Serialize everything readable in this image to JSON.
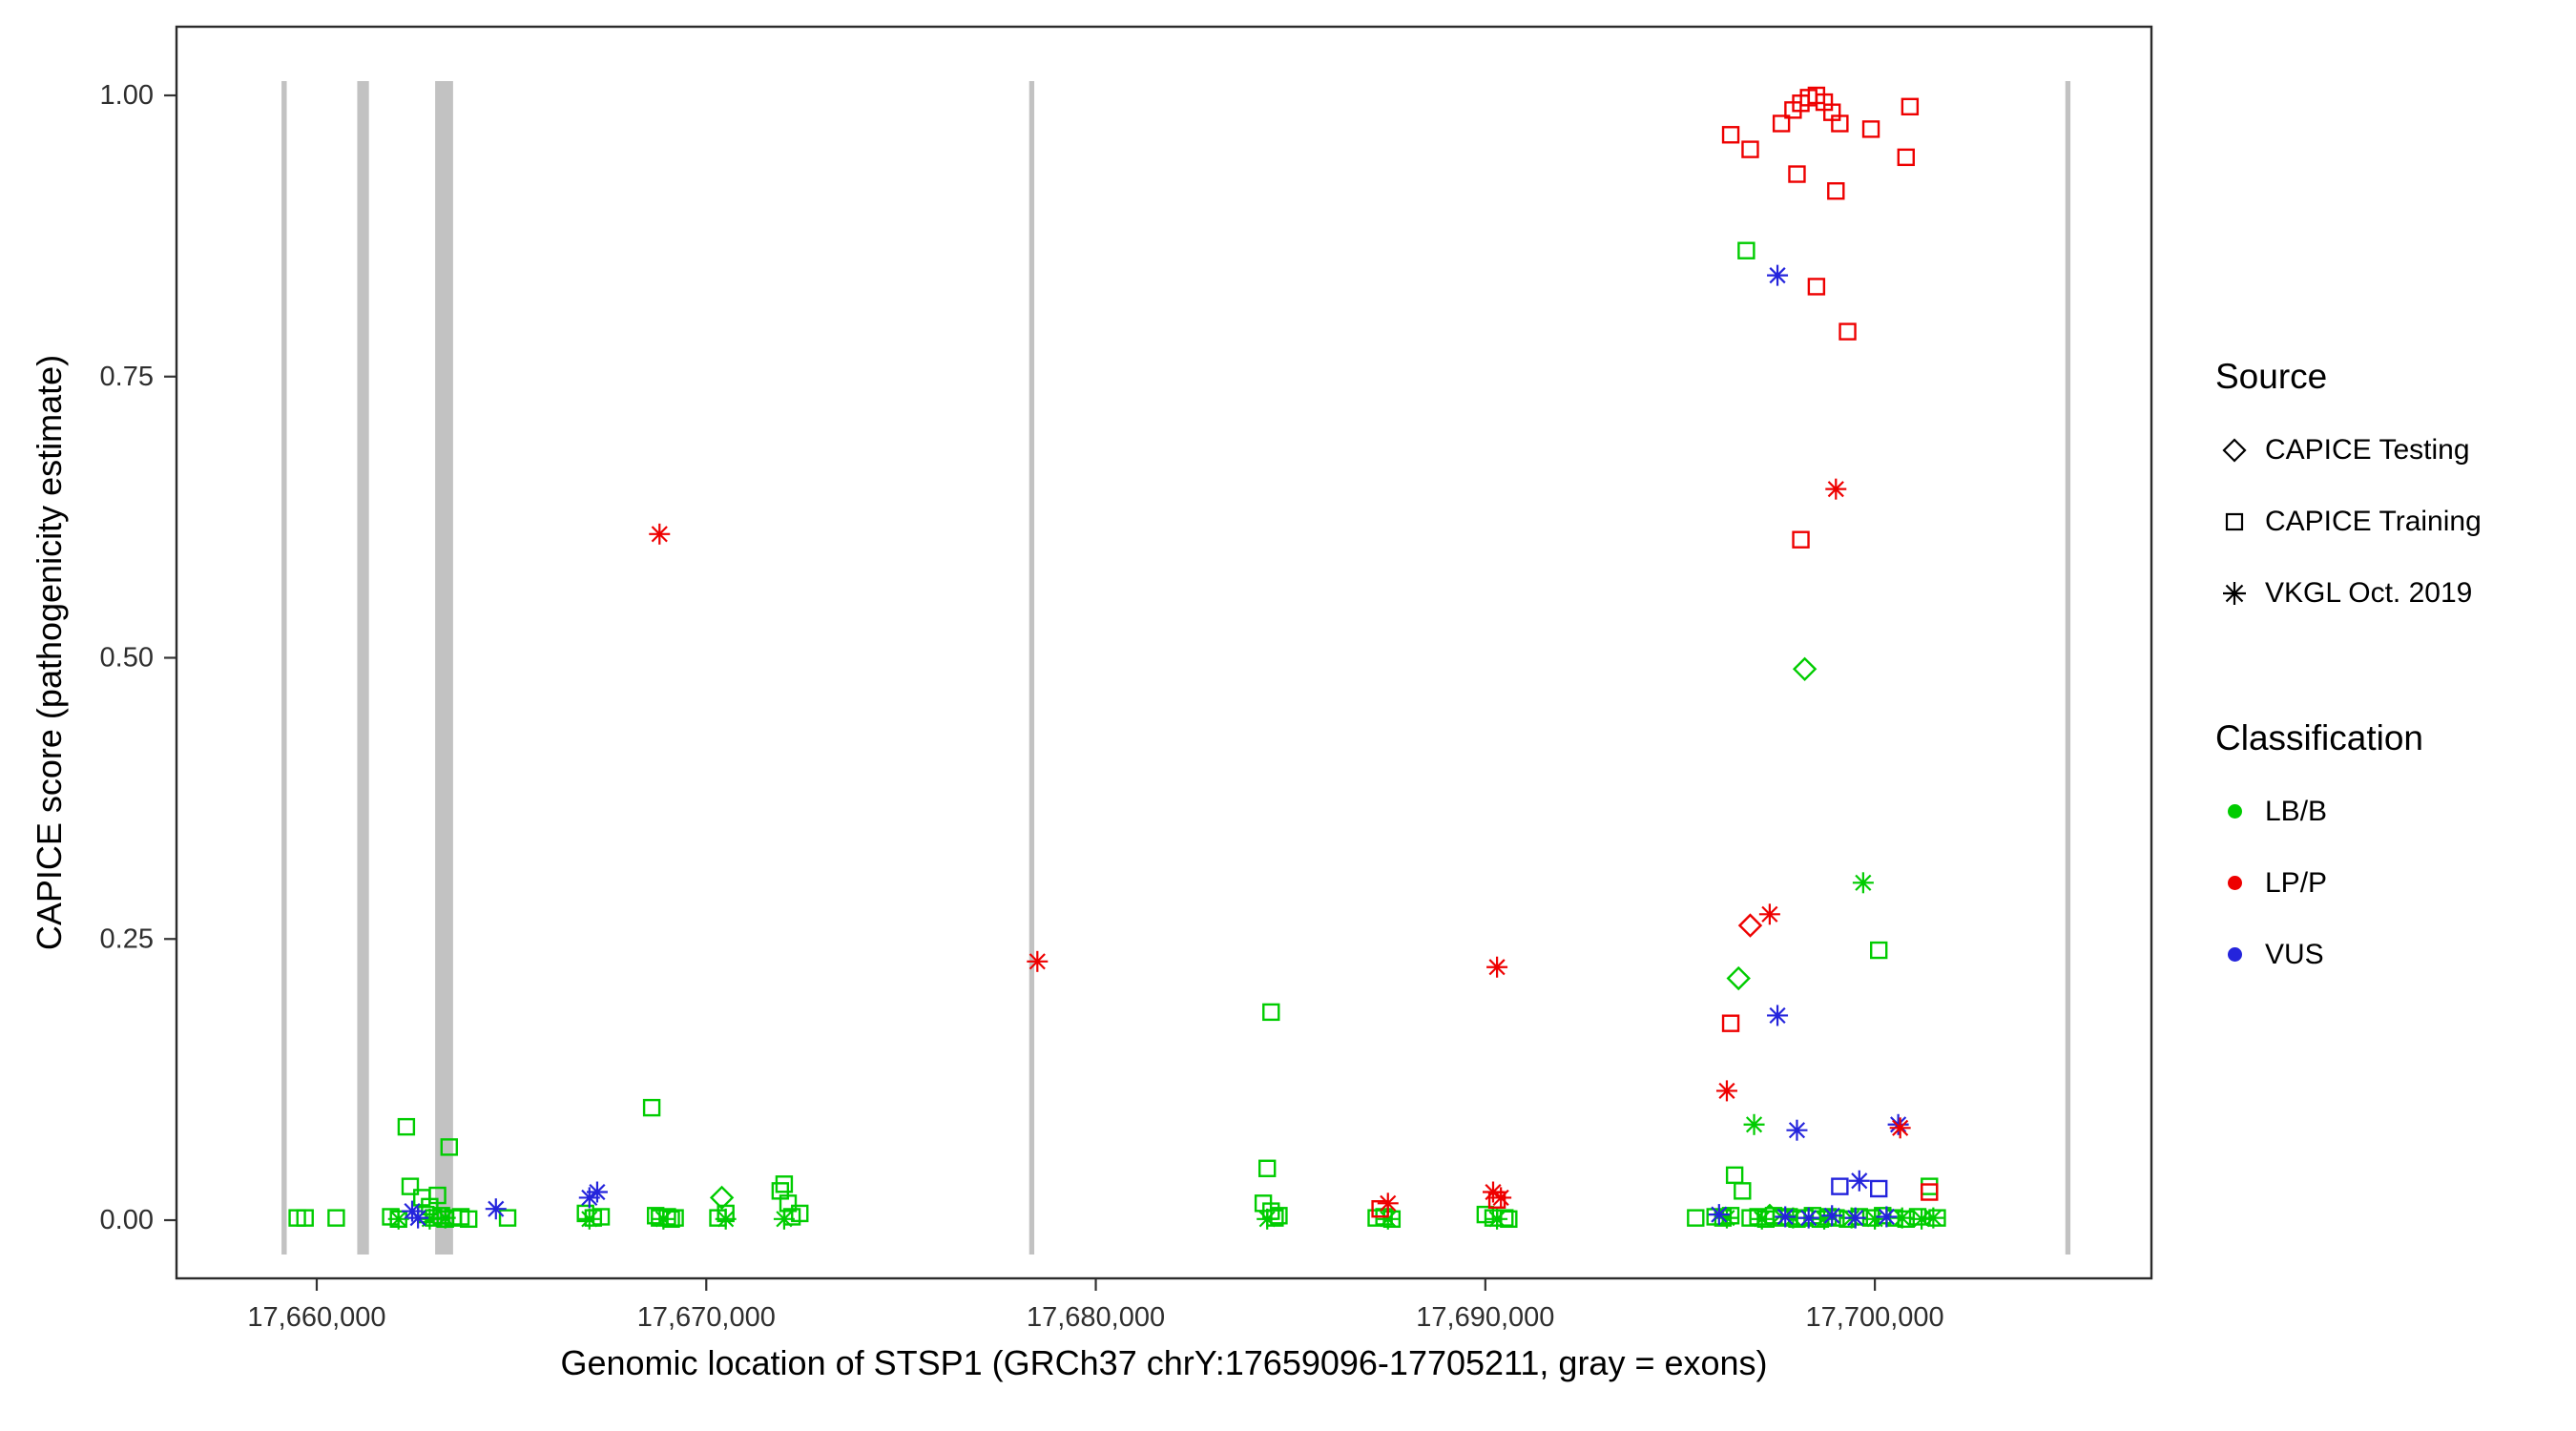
{
  "chart_data": {
    "type": "scatter",
    "title": "",
    "xlabel": "Genomic location of STSP1 (GRCh37 chrY:17659096-17705211, gray = exons)",
    "ylabel": "CAPICE score (pathogenicity estimate)",
    "xlim": [
      17656400,
      17707100
    ],
    "ylim": [
      0,
      1
    ],
    "grid": "off",
    "legend_position": "right",
    "x_ticks": [
      {
        "value": 17660000,
        "label": "17,660,000"
      },
      {
        "value": 17670000,
        "label": "17,670,000"
      },
      {
        "value": 17680000,
        "label": "17,680,000"
      },
      {
        "value": 17690000,
        "label": "17,690,000"
      },
      {
        "value": 17700000,
        "label": "17,700,000"
      }
    ],
    "y_ticks": [
      {
        "value": 0.0,
        "label": "0.00"
      },
      {
        "value": 0.25,
        "label": "0.25"
      },
      {
        "value": 0.5,
        "label": "0.50"
      },
      {
        "value": 0.75,
        "label": "0.75"
      },
      {
        "value": 1.0,
        "label": "1.00"
      }
    ],
    "exon_color": "#c2c2c2",
    "exons": [
      [
        17659096,
        17659230
      ],
      [
        17661040,
        17661340
      ],
      [
        17663040,
        17663500
      ],
      [
        17678290,
        17678420
      ],
      [
        17704890,
        17705020
      ]
    ],
    "colors": {
      "LB/B": "#00cc00",
      "LP/P": "#ee0000",
      "VUS": "#2424dc"
    },
    "shapes": {
      "CAPICE Testing": "diamond",
      "CAPICE Training": "square",
      "VKGL Oct. 2019": "asterisk"
    },
    "series": [
      {
        "source": "CAPICE Training",
        "classification": "LB/B",
        "points": [
          [
            17659500,
            0.002
          ],
          [
            17659700,
            0.002
          ],
          [
            17660500,
            0.002
          ],
          [
            17661900,
            0.003
          ],
          [
            17662100,
            0.001
          ],
          [
            17662300,
            0.083
          ],
          [
            17662400,
            0.03
          ],
          [
            17662700,
            0.02
          ],
          [
            17662800,
            0.005
          ],
          [
            17662900,
            0.012
          ],
          [
            17663000,
            0.002
          ],
          [
            17663100,
            0.022
          ],
          [
            17663200,
            0.004
          ],
          [
            17663300,
            0.001
          ],
          [
            17663400,
            0.065
          ],
          [
            17663500,
            0.002
          ],
          [
            17663700,
            0.003
          ],
          [
            17663900,
            0.001
          ],
          [
            17664900,
            0.002
          ],
          [
            17666900,
            0.006
          ],
          [
            17667100,
            0.002
          ],
          [
            17667300,
            0.003
          ],
          [
            17668600,
            0.1
          ],
          [
            17668700,
            0.004
          ],
          [
            17668800,
            0.002
          ],
          [
            17669000,
            0.003
          ],
          [
            17669100,
            0.001
          ],
          [
            17669200,
            0.002
          ],
          [
            17670300,
            0.002
          ],
          [
            17670500,
            0.006
          ],
          [
            17671900,
            0.026
          ],
          [
            17672000,
            0.032
          ],
          [
            17672100,
            0.015
          ],
          [
            17672200,
            0.003
          ],
          [
            17672400,
            0.006
          ],
          [
            17684500,
            0.185
          ],
          [
            17684400,
            0.046
          ],
          [
            17684300,
            0.015
          ],
          [
            17684500,
            0.008
          ],
          [
            17684600,
            0.002
          ],
          [
            17684700,
            0.004
          ],
          [
            17687200,
            0.002
          ],
          [
            17687400,
            0.003
          ],
          [
            17687600,
            0.001
          ],
          [
            17690000,
            0.005
          ],
          [
            17690200,
            0.002
          ],
          [
            17690500,
            0.002
          ],
          [
            17690600,
            0.001
          ],
          [
            17695400,
            0.002
          ],
          [
            17696700,
            0.862
          ],
          [
            17700100,
            0.24
          ],
          [
            17696400,
            0.04
          ],
          [
            17696600,
            0.026
          ],
          [
            17695900,
            0.003
          ],
          [
            17696100,
            0.002
          ],
          [
            17696300,
            0.004
          ],
          [
            17696800,
            0.002
          ],
          [
            17697000,
            0.003
          ],
          [
            17697200,
            0.001
          ],
          [
            17697400,
            0.004
          ],
          [
            17697600,
            0.002
          ],
          [
            17697800,
            0.003
          ],
          [
            17698000,
            0.001
          ],
          [
            17698200,
            0.002
          ],
          [
            17698400,
            0.004
          ],
          [
            17698600,
            0.001
          ],
          [
            17698800,
            0.003
          ],
          [
            17699000,
            0.002
          ],
          [
            17699300,
            0.001
          ],
          [
            17699600,
            0.003
          ],
          [
            17699900,
            0.002
          ],
          [
            17700200,
            0.004
          ],
          [
            17700500,
            0.002
          ],
          [
            17700800,
            0.001
          ],
          [
            17701100,
            0.003
          ],
          [
            17701400,
            0.03
          ],
          [
            17701600,
            0.002
          ]
        ]
      },
      {
        "source": "CAPICE Testing",
        "classification": "LB/B",
        "points": [
          [
            17670400,
            0.02
          ],
          [
            17696500,
            0.215
          ],
          [
            17698200,
            0.49
          ],
          [
            17697300,
            0.004
          ]
        ]
      },
      {
        "source": "VKGL Oct. 2019",
        "classification": "LB/B",
        "points": [
          [
            17662100,
            0.001
          ],
          [
            17662900,
            0.001
          ],
          [
            17663300,
            0.002
          ],
          [
            17667000,
            0.001
          ],
          [
            17668900,
            0.001
          ],
          [
            17670500,
            0.001
          ],
          [
            17672000,
            0.001
          ],
          [
            17684400,
            0.001
          ],
          [
            17687500,
            0.001
          ],
          [
            17690300,
            0.001
          ],
          [
            17696200,
            0.002
          ],
          [
            17696900,
            0.085
          ],
          [
            17697100,
            0.001
          ],
          [
            17697900,
            0.002
          ],
          [
            17698700,
            0.001
          ],
          [
            17699400,
            0.002
          ],
          [
            17699700,
            0.3
          ],
          [
            17700000,
            0.001
          ],
          [
            17700700,
            0.002
          ],
          [
            17701200,
            0.001
          ],
          [
            17701500,
            0.002
          ]
        ]
      },
      {
        "source": "CAPICE Training",
        "classification": "VUS",
        "points": [
          [
            17699100,
            0.03
          ],
          [
            17700100,
            0.028
          ]
        ]
      },
      {
        "source": "VKGL Oct. 2019",
        "classification": "VUS",
        "points": [
          [
            17662450,
            0.008
          ],
          [
            17662600,
            0.002
          ],
          [
            17664600,
            0.01
          ],
          [
            17667000,
            0.02
          ],
          [
            17667200,
            0.025
          ],
          [
            17697500,
            0.84
          ],
          [
            17697500,
            0.182
          ],
          [
            17698000,
            0.08
          ],
          [
            17700600,
            0.085
          ],
          [
            17696000,
            0.005
          ],
          [
            17697700,
            0.003
          ],
          [
            17698300,
            0.002
          ],
          [
            17698900,
            0.004
          ],
          [
            17699500,
            0.002
          ],
          [
            17699600,
            0.035
          ],
          [
            17700300,
            0.003
          ]
        ]
      },
      {
        "source": "CAPICE Training",
        "classification": "LP/P",
        "points": [
          [
            17696300,
            0.965
          ],
          [
            17696800,
            0.952
          ],
          [
            17697600,
            0.975
          ],
          [
            17697900,
            0.987
          ],
          [
            17698100,
            0.993
          ],
          [
            17698300,
            0.998
          ],
          [
            17698500,
            1.0
          ],
          [
            17698700,
            0.994
          ],
          [
            17698900,
            0.985
          ],
          [
            17699100,
            0.975
          ],
          [
            17698000,
            0.93
          ],
          [
            17699900,
            0.97
          ],
          [
            17699000,
            0.915
          ],
          [
            17700900,
            0.99
          ],
          [
            17700800,
            0.945
          ],
          [
            17698500,
            0.83
          ],
          [
            17699300,
            0.79
          ],
          [
            17698100,
            0.605
          ],
          [
            17696300,
            0.175
          ],
          [
            17687300,
            0.01
          ],
          [
            17690300,
            0.018
          ],
          [
            17701400,
            0.025
          ]
        ]
      },
      {
        "source": "CAPICE Testing",
        "classification": "LP/P",
        "points": [
          [
            17696800,
            0.262
          ]
        ]
      },
      {
        "source": "VKGL Oct. 2019",
        "classification": "LP/P",
        "points": [
          [
            17668800,
            0.61
          ],
          [
            17678500,
            0.23
          ],
          [
            17690300,
            0.225
          ],
          [
            17699000,
            0.65
          ],
          [
            17697300,
            0.272
          ],
          [
            17696200,
            0.115
          ],
          [
            17687500,
            0.015
          ],
          [
            17690200,
            0.025
          ],
          [
            17690400,
            0.02
          ],
          [
            17700650,
            0.082
          ]
        ]
      }
    ]
  },
  "legend": {
    "source": {
      "title": "Source",
      "items": [
        {
          "label": "CAPICE Testing",
          "shape": "diamond"
        },
        {
          "label": "CAPICE Training",
          "shape": "square"
        },
        {
          "label": "VKGL Oct. 2019",
          "shape": "asterisk"
        }
      ]
    },
    "classification": {
      "title": "Classification",
      "items": [
        {
          "label": "LB/B",
          "color": "#00cc00"
        },
        {
          "label": "LP/P",
          "color": "#ee0000"
        },
        {
          "label": "VUS",
          "color": "#2424dc"
        }
      ]
    }
  }
}
